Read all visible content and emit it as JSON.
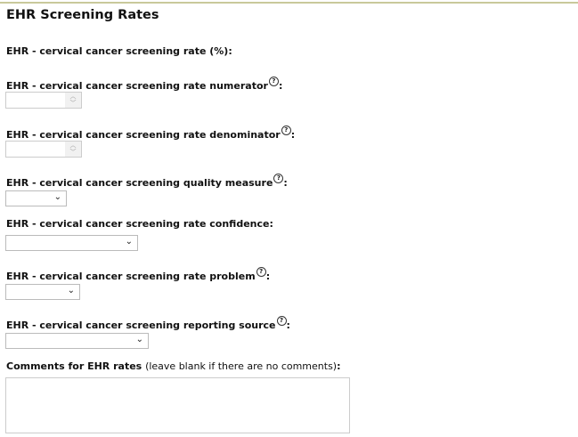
{
  "section_title": "EHR Screening Rates",
  "fields": {
    "rate": {
      "label": "EHR - cervical cancer screening rate (%)"
    },
    "numerator": {
      "label": "EHR - cervical cancer screening rate numerator",
      "value": ""
    },
    "denominator": {
      "label": "EHR - cervical cancer screening rate denominator",
      "value": ""
    },
    "quality_measure": {
      "label": "EHR - cervical cancer screening quality measure",
      "value": ""
    },
    "confidence": {
      "label": "EHR - cervical cancer screening rate confidence",
      "value": ""
    },
    "problem": {
      "label": "EHR - cervical cancer screening rate problem",
      "value": ""
    },
    "reporting_source": {
      "label": "EHR - cervical cancer screening reporting source",
      "value": ""
    },
    "comments": {
      "label": "Comments for EHR rates",
      "hint": "(leave blank if there are no comments)",
      "value": ""
    }
  },
  "colon": ":",
  "help_icon": "?",
  "colors": {
    "top_border": "#c9c99b"
  }
}
